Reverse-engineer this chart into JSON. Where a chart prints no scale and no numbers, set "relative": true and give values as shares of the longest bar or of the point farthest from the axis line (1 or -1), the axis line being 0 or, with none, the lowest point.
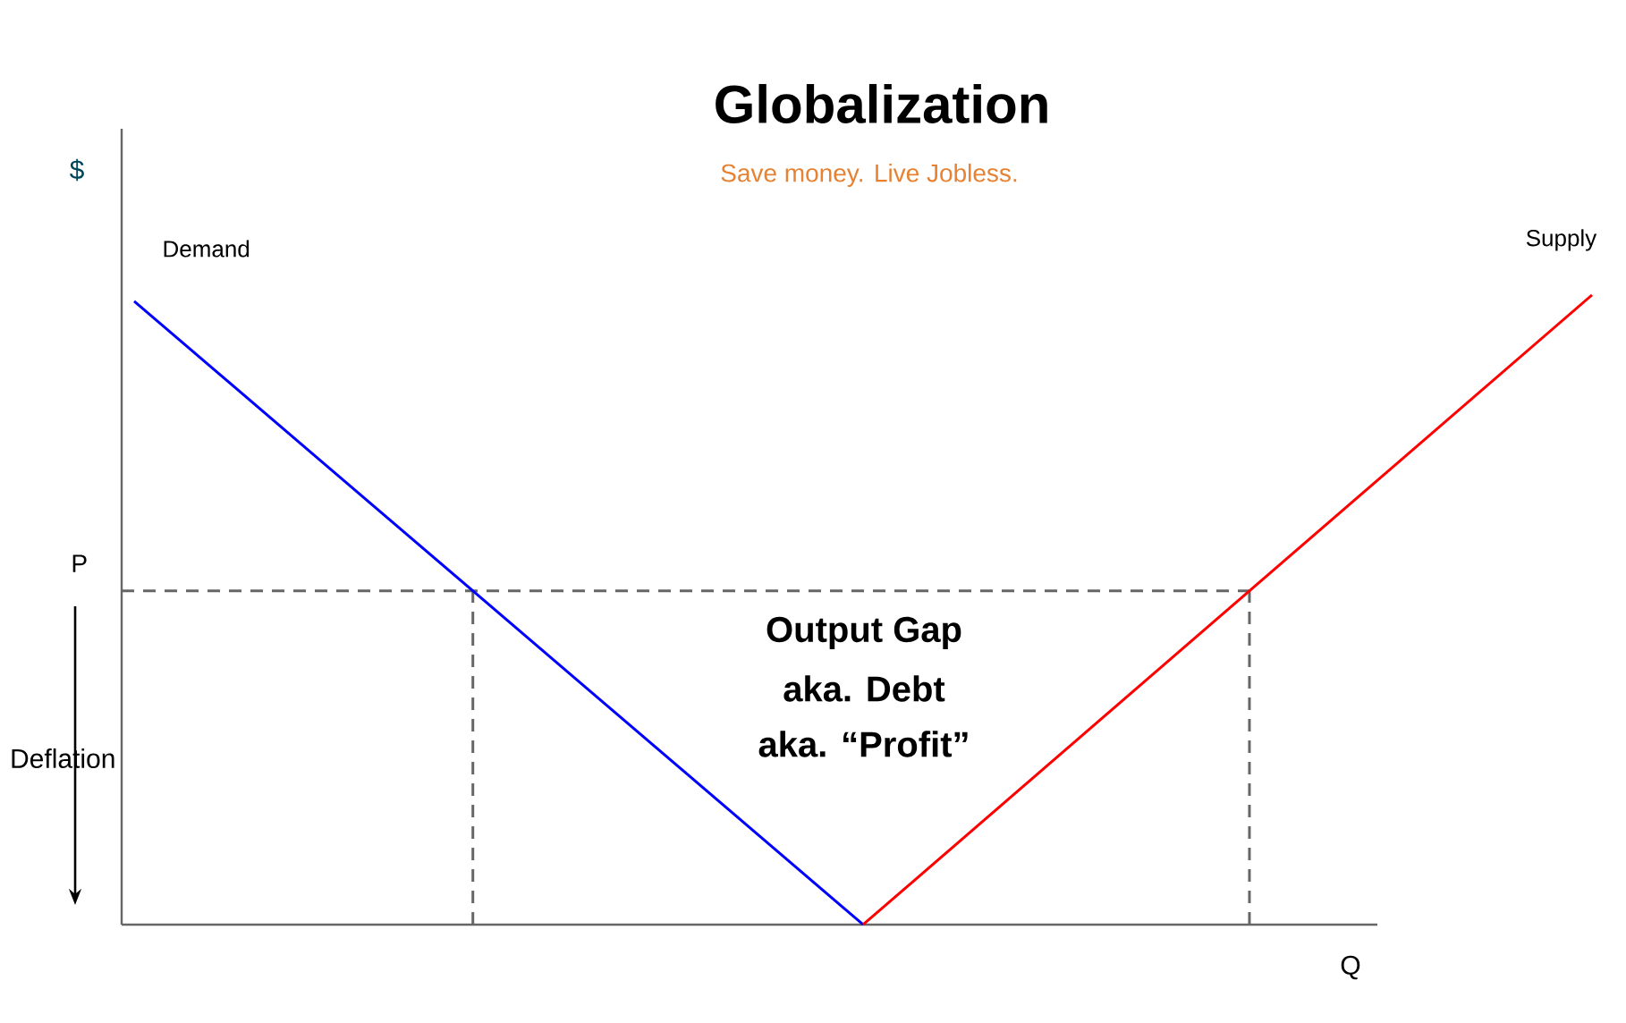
{
  "chart_data": {
    "type": "line",
    "title": "Globalization",
    "subtitle": "Save money. Live Jobless.",
    "xlabel": "Q",
    "ylabel": "$",
    "relative": true,
    "categories": [
      null,
      null,
      null
    ],
    "series": [
      {
        "name": "Demand",
        "color": "#0000ff",
        "values": [
          0.99,
          0,
          null
        ]
      },
      {
        "name": "Supply",
        "color": "#ff0000",
        "values": [
          null,
          0,
          1
        ]
      }
    ],
    "ref_lines": [
      {
        "axis": "y",
        "value": 0.53,
        "label": "P",
        "color": "#666666",
        "line_style": "dashed"
      }
    ],
    "annotations": [
      "Output Gap",
      "aka. Debt",
      "aka. “Profit”",
      "Deflation"
    ],
    "marker": "none",
    "line_style": "solid"
  }
}
